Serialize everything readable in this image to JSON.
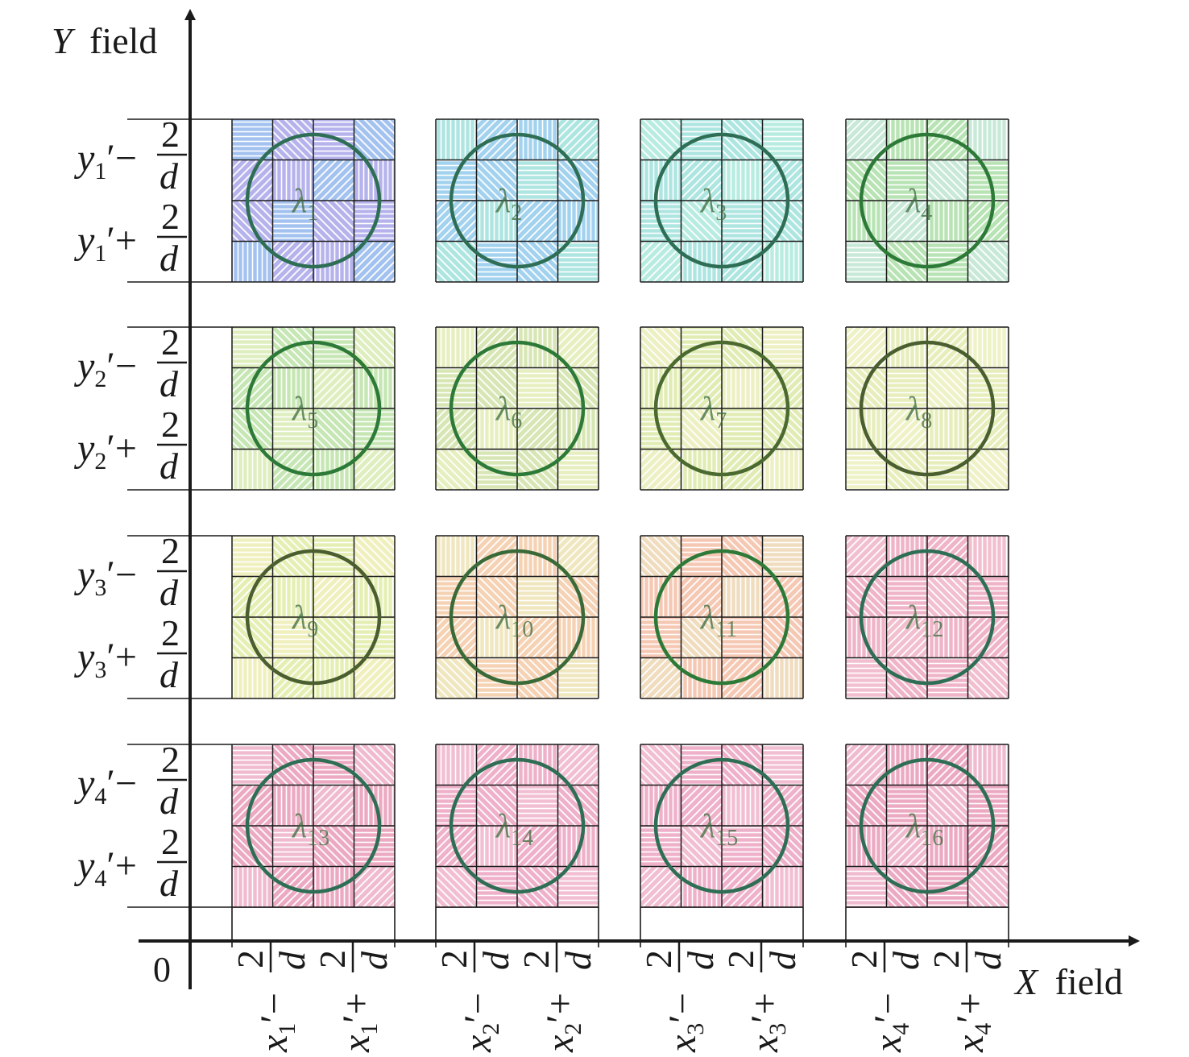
{
  "axes": {
    "y_label_var": "Y",
    "y_label_word": "field",
    "x_label_var": "X",
    "x_label_word": "field",
    "origin": "0"
  },
  "rows": [
    {
      "var": "y",
      "sub": "1",
      "minus": "′−",
      "plus": "′+",
      "num": "2",
      "den": "d"
    },
    {
      "var": "y",
      "sub": "2",
      "minus": "′−",
      "plus": "′+",
      "num": "2",
      "den": "d"
    },
    {
      "var": "y",
      "sub": "3",
      "minus": "′−",
      "plus": "′+",
      "num": "2",
      "den": "d"
    },
    {
      "var": "y",
      "sub": "4",
      "minus": "′−",
      "plus": "′+",
      "num": "2",
      "den": "d"
    }
  ],
  "cols": [
    {
      "var": "x",
      "sub": "1",
      "minus": "′−",
      "plus": "′+",
      "num": "2",
      "den": "d"
    },
    {
      "var": "x",
      "sub": "2",
      "minus": "′−",
      "plus": "′+",
      "num": "2",
      "den": "d"
    },
    {
      "var": "x",
      "sub": "3",
      "minus": "′−",
      "plus": "′+",
      "num": "2",
      "den": "d"
    },
    {
      "var": "x",
      "sub": "4",
      "minus": "′−",
      "plus": "′+",
      "num": "2",
      "den": "d"
    }
  ],
  "cells": [
    {
      "sym": "λ",
      "sub": "1",
      "fill": "#8c87e0",
      "alt": "#6fa0e6",
      "ring": "#2e6e55"
    },
    {
      "sym": "λ",
      "sub": "2",
      "fill": "#6fb8e6",
      "alt": "#7fd6cf",
      "ring": "#2e6e55"
    },
    {
      "sym": "λ",
      "sub": "3",
      "fill": "#7fd6cf",
      "alt": "#8fe0d0",
      "ring": "#2e6e55"
    },
    {
      "sym": "λ",
      "sub": "4",
      "fill": "#8fd48a",
      "alt": "#a8dcc0",
      "ring": "#2d7a38"
    },
    {
      "sym": "λ",
      "sub": "5",
      "fill": "#a6d88a",
      "alt": "#cde49a",
      "ring": "#2d7a38"
    },
    {
      "sym": "λ",
      "sub": "6",
      "fill": "#bfd88a",
      "alt": "#d8e69a",
      "ring": "#2d7a38"
    },
    {
      "sym": "λ",
      "sub": "7",
      "fill": "#cfe08a",
      "alt": "#e0e8a0",
      "ring": "#4a6a30"
    },
    {
      "sym": "λ",
      "sub": "8",
      "fill": "#d9e496",
      "alt": "#e4eaa6",
      "ring": "#4a5e30"
    },
    {
      "sym": "λ",
      "sub": "9",
      "fill": "#d6e68a",
      "alt": "#e8e89a",
      "ring": "#4a5e30"
    },
    {
      "sym": "λ",
      "sub": "10",
      "fill": "#efb88a",
      "alt": "#e8d89a",
      "ring": "#3a6a38"
    },
    {
      "sym": "λ",
      "sub": "11",
      "fill": "#f0a88a",
      "alt": "#e8c89a",
      "ring": "#2d7a38"
    },
    {
      "sym": "λ",
      "sub": "12",
      "fill": "#e68aa8",
      "alt": "#ea9ab4",
      "ring": "#2e6e55"
    },
    {
      "sym": "λ",
      "sub": "13",
      "fill": "#e07aa0",
      "alt": "#e894b4",
      "ring": "#2e6e55"
    },
    {
      "sym": "λ",
      "sub": "14",
      "fill": "#e485aa",
      "alt": "#ea9ab8",
      "ring": "#2e6e55"
    },
    {
      "sym": "λ",
      "sub": "15",
      "fill": "#e485aa",
      "alt": "#ea9ab8",
      "ring": "#2e6e55"
    },
    {
      "sym": "λ",
      "sub": "16",
      "fill": "#e07aa0",
      "alt": "#e894b4",
      "ring": "#2e6e55"
    }
  ]
}
